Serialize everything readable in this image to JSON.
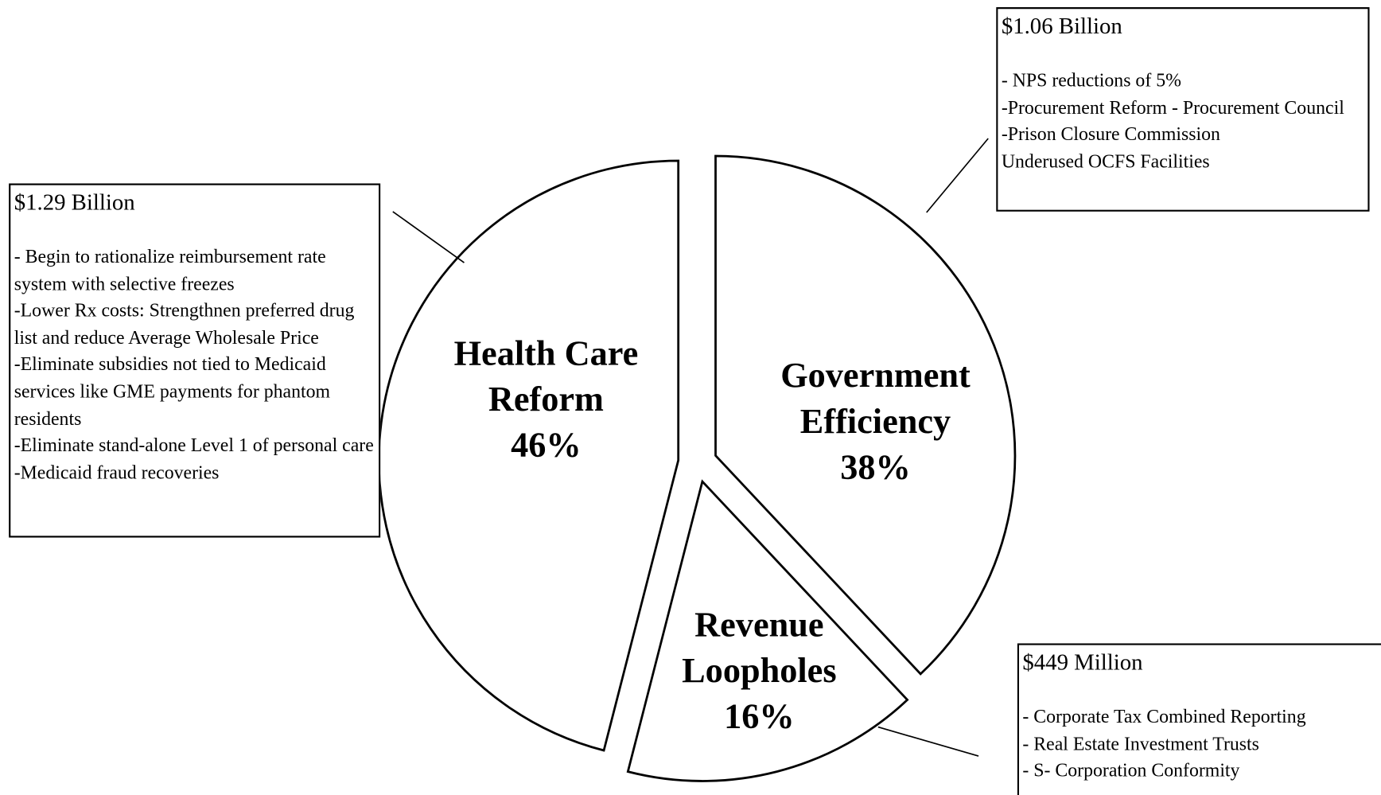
{
  "chart_data": {
    "type": "pie",
    "categories": [
      "Government Efficiency",
      "Revenue Loopholes",
      "Health Care Reform"
    ],
    "values": [
      38,
      16,
      46
    ],
    "value_labels": [
      "38%",
      "16%",
      "46%"
    ],
    "color": "#ffffff",
    "annotations": [
      {
        "title": "$1.06 Billion",
        "items": [
          "- NPS reductions of 5%",
          "-Procurement Reform - Procurement Council",
          "-Prison Closure Commission",
          "Underused OCFS Facilities"
        ]
      },
      {
        "title": "$449 Million",
        "items": [
          "- Corporate Tax Combined Reporting",
          "- Real Estate Investment Trusts",
          "- S- Corporation Conformity"
        ]
      },
      {
        "title": "$1.29 Billion",
        "items": [
          "- Begin to rationalize reimbursement rate system with selective freezes",
          "-Lower Rx costs:  Strengthnen preferred drug list and reduce Average Wholesale Price",
          "-Eliminate subsidies not tied to Medicaid services like GME payments for phantom residents",
          "-Eliminate stand-alone Level 1 of personal care",
          "-Medicaid fraud recoveries"
        ]
      }
    ]
  }
}
